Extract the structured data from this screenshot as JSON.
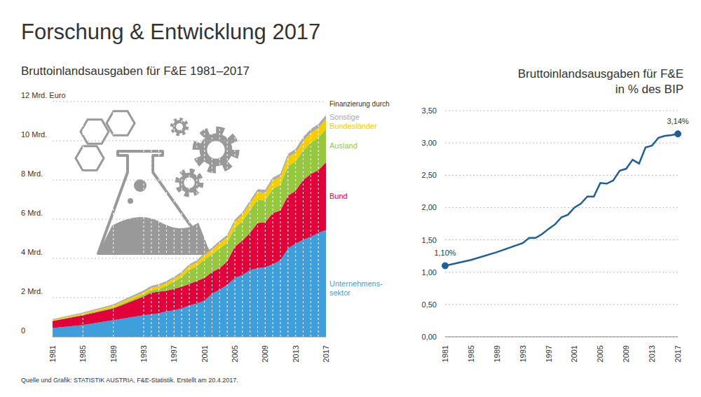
{
  "title": "Forschung & Entwicklung 2017",
  "source": "Quelle und Grafik: STATISTIK AUSTRIA, F&E-Statistik. Erstellt am 20.4.2017.",
  "chart_data": [
    {
      "type": "area",
      "stacked": true,
      "title": "Bruttoinlandsausgaben für F&E 1981–2017",
      "legend_title": "Finanzierung durch",
      "legend": "right",
      "grid": true,
      "x": [
        1981,
        1985,
        1989,
        1993,
        1994,
        1995,
        1996,
        1997,
        1998,
        1999,
        2000,
        2001,
        2002,
        2003,
        2004,
        2005,
        2006,
        2007,
        2008,
        2009,
        2010,
        2011,
        2012,
        2013,
        2014,
        2015,
        2016,
        2017
      ],
      "xlim": [
        1981,
        2017
      ],
      "xticks": [
        1981,
        1985,
        1989,
        1993,
        1997,
        2001,
        2005,
        2009,
        2013,
        2017
      ],
      "ylim": [
        0,
        12
      ],
      "yticks": [
        0,
        {
          "value": 2,
          "label": "2 Mrd."
        },
        {
          "value": 4,
          "label": "4 Mrd."
        },
        {
          "value": 6,
          "label": "6 Mrd."
        },
        {
          "value": 8,
          "label": "8 Mrd."
        },
        {
          "value": 10,
          "label": "10 Mrd."
        },
        {
          "value": 12,
          "label": "12 Mrd. Euro"
        }
      ],
      "series": [
        {
          "name": "Unternehmens-\nsektor",
          "color": "#3f9fdd",
          "values": [
            0.45,
            0.6,
            0.85,
            1.1,
            1.15,
            1.2,
            1.3,
            1.35,
            1.45,
            1.6,
            1.7,
            1.85,
            2.2,
            2.4,
            2.65,
            3.0,
            3.15,
            3.4,
            3.5,
            3.55,
            3.7,
            3.9,
            4.5,
            4.75,
            4.95,
            5.1,
            5.3,
            5.45
          ]
        },
        {
          "name": "Bund",
          "color": "#e2003b",
          "values": [
            0.35,
            0.5,
            0.6,
            0.95,
            1.1,
            1.1,
            1.05,
            1.1,
            1.1,
            1.1,
            1.15,
            1.15,
            1.1,
            1.1,
            1.2,
            1.6,
            1.75,
            1.9,
            2.3,
            2.3,
            2.6,
            2.55,
            2.7,
            2.7,
            3.05,
            3.2,
            3.2,
            3.45
          ]
        },
        {
          "name": "Ausland",
          "color": "#95c83f",
          "values": [
            0.02,
            0.03,
            0.05,
            0.1,
            0.12,
            0.15,
            0.25,
            0.35,
            0.5,
            0.7,
            0.75,
            0.95,
            0.9,
            1.0,
            0.95,
            0.95,
            1.0,
            1.15,
            1.2,
            1.1,
            1.25,
            1.3,
            1.5,
            1.5,
            1.5,
            1.6,
            1.65,
            1.7
          ]
        },
        {
          "name": "Bundesländer",
          "color": "#f5cd00",
          "values": [
            0.05,
            0.07,
            0.09,
            0.12,
            0.13,
            0.14,
            0.15,
            0.16,
            0.17,
            0.2,
            0.2,
            0.22,
            0.25,
            0.27,
            0.28,
            0.3,
            0.32,
            0.35,
            0.38,
            0.4,
            0.42,
            0.42,
            0.45,
            0.45,
            0.48,
            0.5,
            0.5,
            0.5
          ]
        },
        {
          "name": "Sonstige",
          "color": "#aaaaaa",
          "values": [
            0.03,
            0.04,
            0.06,
            0.1,
            0.1,
            0.1,
            0.1,
            0.1,
            0.1,
            0.1,
            0.1,
            0.1,
            0.1,
            0.12,
            0.12,
            0.13,
            0.13,
            0.14,
            0.15,
            0.15,
            0.15,
            0.15,
            0.18,
            0.18,
            0.2,
            0.2,
            0.2,
            0.2
          ]
        }
      ]
    },
    {
      "type": "line",
      "title": "Bruttoinlandsausgaben für F&E",
      "subtitle": "in % des BIP",
      "grid": true,
      "color": "#1f5f99",
      "x": [
        1981,
        1985,
        1989,
        1993,
        1994,
        1995,
        1996,
        1997,
        1998,
        1999,
        2000,
        2001,
        2002,
        2003,
        2004,
        2005,
        2006,
        2007,
        2008,
        2009,
        2010,
        2011,
        2012,
        2013,
        2014,
        2015,
        2016,
        2017
      ],
      "values": [
        1.1,
        1.19,
        1.31,
        1.45,
        1.53,
        1.53,
        1.59,
        1.67,
        1.74,
        1.85,
        1.89,
        2.0,
        2.06,
        2.17,
        2.17,
        2.38,
        2.37,
        2.42,
        2.57,
        2.6,
        2.74,
        2.68,
        2.93,
        2.96,
        3.08,
        3.11,
        3.12,
        3.14
      ],
      "xlim": [
        1981,
        2017
      ],
      "xticks": [
        1981,
        1985,
        1989,
        1993,
        1997,
        2001,
        2005,
        2009,
        2013,
        2017
      ],
      "ylim": [
        0,
        3.5
      ],
      "yticks": [
        {
          "value": 0,
          "label": "0,00"
        },
        {
          "value": 0.5,
          "label": "0,50"
        },
        {
          "value": 1,
          "label": "1,00"
        },
        {
          "value": 1.5,
          "label": "1,50"
        },
        {
          "value": 2,
          "label": "2,00"
        },
        {
          "value": 2.5,
          "label": "2,50"
        },
        {
          "value": 3,
          "label": "3,00"
        },
        {
          "value": 3.5,
          "label": "3,50"
        }
      ],
      "annotations": [
        {
          "x": 1981,
          "value": 1.1,
          "label": "1,10%"
        },
        {
          "x": 2017,
          "value": 3.14,
          "label": "3,14%"
        }
      ]
    }
  ]
}
